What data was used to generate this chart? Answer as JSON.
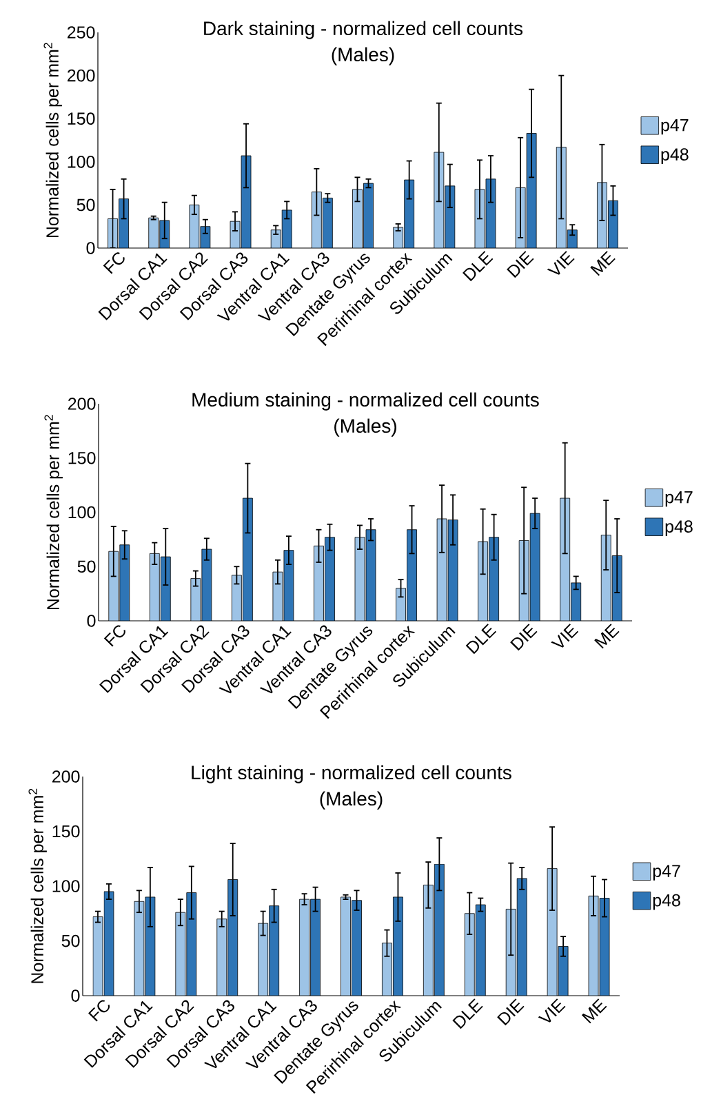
{
  "chart_data": [
    {
      "type": "bar",
      "title": "Dark staining - normalized cell counts",
      "subtitle": "(Males)",
      "ylabel": "Normalized cells per mm$^{2}$",
      "categories": [
        "FC",
        "Dorsal CA1",
        "Dorsal CA2",
        "Dorsal CA3",
        "Ventral CA1",
        "Ventral CA3",
        "Dentate Gyrus",
        "Perirhinal cortex",
        "Subiculum",
        "DLE",
        "DIE",
        "VIE",
        "ME"
      ],
      "series": [
        {
          "name": "p47",
          "color": "#9dc3e6",
          "values": [
            34,
            35,
            50,
            31,
            21,
            65,
            68,
            24,
            111,
            68,
            70,
            117,
            76
          ],
          "errors": [
            34,
            2,
            11,
            11,
            5,
            27,
            14,
            4,
            57,
            34,
            58,
            83,
            44
          ]
        },
        {
          "name": "p48",
          "color": "#2e75b6",
          "values": [
            57,
            32,
            25,
            107,
            44,
            58,
            75,
            79,
            72,
            80,
            133,
            21,
            55
          ],
          "errors": [
            23,
            21,
            8,
            37,
            10,
            5,
            5,
            22,
            25,
            27,
            51,
            6,
            17
          ]
        }
      ],
      "ylim": [
        0,
        250
      ],
      "yticks": [
        0,
        50,
        100,
        150,
        200,
        250
      ],
      "grid": false,
      "legend": "right"
    },
    {
      "type": "bar",
      "title": "Medium staining - normalized cell counts",
      "subtitle": "(Males)",
      "ylabel": "Normalized cells per mm$^{2}$",
      "categories": [
        "FC",
        "Dorsal CA1",
        "Dorsal CA2",
        "Dorsal CA3",
        "Ventral CA1",
        "Ventral CA3",
        "Dentate Gyrus",
        "Perirhinal cortex",
        "Subiculum",
        "DLE",
        "DIE",
        "VIE",
        "ME"
      ],
      "series": [
        {
          "name": "p47",
          "color": "#9dc3e6",
          "values": [
            64,
            62,
            39,
            42,
            45,
            69,
            77,
            30,
            94,
            73,
            74,
            113,
            79
          ],
          "errors": [
            23,
            10,
            7,
            8,
            11,
            15,
            11,
            8,
            31,
            30,
            49,
            51,
            32
          ]
        },
        {
          "name": "p48",
          "color": "#2e75b6",
          "values": [
            70,
            59,
            66,
            113,
            65,
            77,
            84,
            84,
            93,
            77,
            99,
            35,
            60
          ],
          "errors": [
            13,
            26,
            10,
            32,
            13,
            12,
            10,
            22,
            23,
            21,
            14,
            6,
            34
          ]
        }
      ],
      "ylim": [
        0,
        200
      ],
      "yticks": [
        0,
        50,
        100,
        150,
        200
      ],
      "grid": false,
      "legend": "right"
    },
    {
      "type": "bar",
      "title": "Light staining - normalized cell counts",
      "subtitle": "(Males)",
      "ylabel": "Normalized cells per mm$^{2}$",
      "categories": [
        "FC",
        "Dorsal CA1",
        "Dorsal CA2",
        "Dorsal CA3",
        "Ventral CA1",
        "Ventral CA3",
        "Dentate Gyrus",
        "Perirhinal cortex",
        "Subiculum",
        "DLE",
        "DIE",
        "VIE",
        "ME"
      ],
      "series": [
        {
          "name": "p47",
          "color": "#9dc3e6",
          "values": [
            72,
            86,
            76,
            70,
            66,
            88,
            90,
            48,
            101,
            75,
            79,
            116,
            91
          ],
          "errors": [
            5,
            10,
            12,
            7,
            11,
            5,
            2,
            12,
            21,
            19,
            42,
            38,
            18
          ]
        },
        {
          "name": "p48",
          "color": "#2e75b6",
          "values": [
            95,
            90,
            94,
            106,
            82,
            88,
            87,
            90,
            120,
            83,
            107,
            45,
            89
          ],
          "errors": [
            7,
            27,
            24,
            33,
            15,
            11,
            9,
            22,
            24,
            6,
            10,
            9,
            17
          ]
        }
      ],
      "ylim": [
        0,
        200
      ],
      "yticks": [
        0,
        50,
        100,
        150,
        200
      ],
      "grid": false,
      "legend": "right"
    }
  ]
}
